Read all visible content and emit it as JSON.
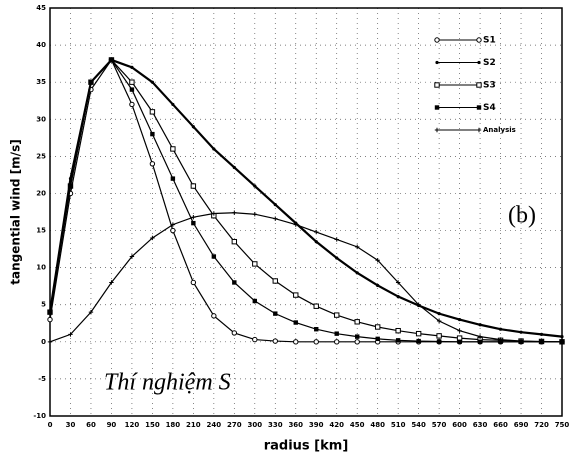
{
  "chart_data": {
    "type": "line",
    "xlabel": "radius [km]",
    "ylabel": "tangential wind [m/s]",
    "annotations": [
      "(b)",
      "Thí nghiệm S"
    ],
    "x": [
      0,
      30,
      60,
      90,
      120,
      150,
      180,
      210,
      240,
      270,
      300,
      330,
      360,
      390,
      420,
      450,
      480,
      510,
      540,
      570,
      600,
      630,
      660,
      690,
      720,
      750
    ],
    "series": [
      {
        "name": "S1",
        "color": "#000000",
        "marker": "open-circle",
        "values": [
          3,
          20,
          34,
          38,
          32,
          24,
          15,
          8,
          3.5,
          1.2,
          0.3,
          0.1,
          0,
          0,
          0,
          0,
          0,
          0,
          0,
          0,
          0,
          0,
          0,
          0,
          0,
          0
        ]
      },
      {
        "name": "S2",
        "color": "#000000",
        "marker": "dot",
        "values": [
          4,
          22,
          35,
          38,
          37,
          35,
          32,
          29,
          26,
          23.5,
          21,
          18.5,
          16,
          13.5,
          11.3,
          9.3,
          7.6,
          6.1,
          4.9,
          3.8,
          3,
          2.3,
          1.7,
          1.3,
          1,
          0.7
        ]
      },
      {
        "name": "S3",
        "color": "#000000",
        "marker": "open-square",
        "values": [
          4,
          21,
          35,
          38,
          35,
          31,
          26,
          21,
          17,
          13.5,
          10.5,
          8.2,
          6.3,
          4.8,
          3.6,
          2.7,
          2,
          1.5,
          1.1,
          0.8,
          0.5,
          0.3,
          0.2,
          0.1,
          0.05,
          0
        ]
      },
      {
        "name": "S4",
        "color": "#000000",
        "marker": "square",
        "values": [
          4,
          21,
          35,
          38,
          34,
          28,
          22,
          16,
          11.5,
          8,
          5.5,
          3.8,
          2.6,
          1.7,
          1.1,
          0.7,
          0.4,
          0.2,
          0.1,
          0.05,
          0,
          0,
          0,
          0,
          0,
          0
        ]
      },
      {
        "name": "Analysis",
        "color": "#000000",
        "marker": "plus",
        "values": [
          0,
          1,
          4,
          8,
          11.5,
          14,
          15.8,
          16.8,
          17.3,
          17.4,
          17.2,
          16.6,
          15.8,
          14.8,
          13.8,
          12.8,
          11,
          8,
          5,
          2.8,
          1.5,
          0.7,
          0.3,
          0.1,
          0,
          0
        ]
      }
    ],
    "xlim": [
      0,
      750
    ],
    "xticks": [
      0,
      30,
      60,
      90,
      120,
      150,
      180,
      210,
      240,
      270,
      300,
      330,
      360,
      390,
      420,
      450,
      480,
      510,
      540,
      570,
      600,
      630,
      660,
      690,
      720,
      750
    ],
    "ylim": [
      -10,
      45
    ],
    "yticks": [
      -10,
      -5,
      0,
      5,
      10,
      15,
      20,
      25,
      30,
      35,
      40,
      45
    ],
    "grid": true,
    "legend": "upper right"
  }
}
